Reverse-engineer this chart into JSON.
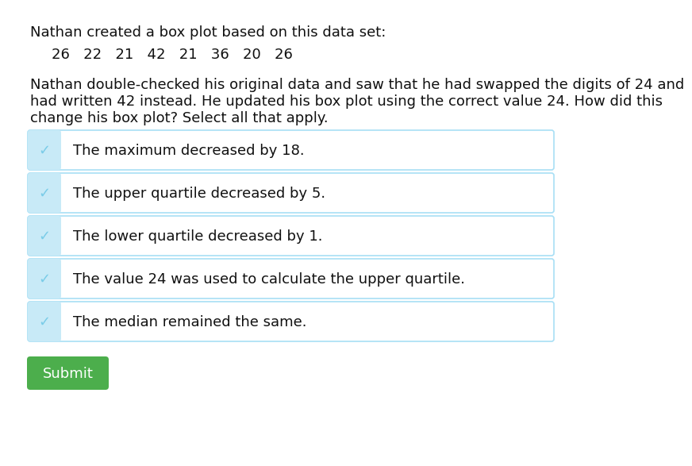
{
  "background_color": "#ffffff",
  "title_line": "Nathan created a box plot based on this data set:",
  "data_values": "26   22   21   42   21   36   20   26",
  "paragraph_lines": [
    "Nathan double-checked his original data and saw that he had swapped the digits of 24 and",
    "had written 42 instead. He updated his box plot using the correct value 24. How did this",
    "change his box plot? Select all that apply."
  ],
  "options": [
    "The maximum decreased by 18.",
    "The upper quartile decreased by 5.",
    "The lower quartile decreased by 1.",
    "The value 24 was used to calculate the upper quartile.",
    "The median remained the same."
  ],
  "checked": [
    true,
    true,
    true,
    true,
    true
  ],
  "checkbox_bg": "#c8eaf7",
  "option_box_border": "#a8dff5",
  "option_box_bg": "#ffffff",
  "checkmark_color": "#7acce8",
  "submit_bg": "#4cae4c",
  "submit_text": "Submit",
  "submit_text_color": "#ffffff",
  "font_size_title": 13,
  "font_size_data": 13,
  "font_size_para": 13,
  "font_size_option": 13,
  "font_size_submit": 13,
  "text_color": "#111111"
}
